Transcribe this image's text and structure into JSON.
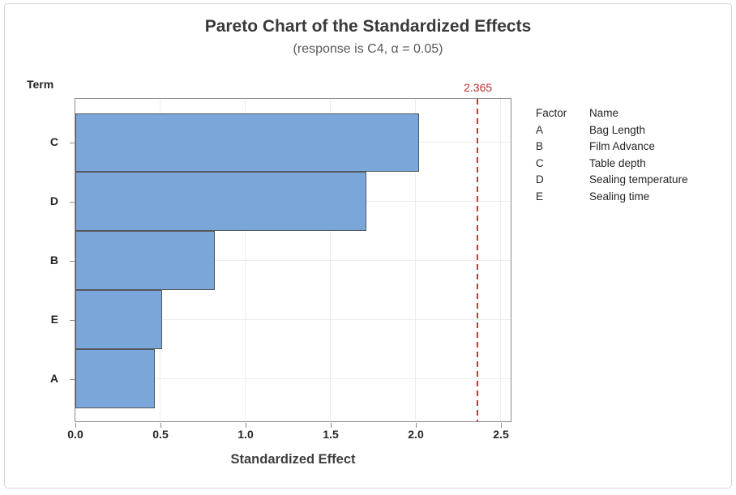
{
  "chart_data": {
    "type": "bar",
    "orientation": "horizontal",
    "title": "Pareto Chart of the Standardized Effects",
    "subtitle": "(response is C4, α = 0.05)",
    "xlabel": "Standardized Effect",
    "ylabel": "Term",
    "categories": [
      "C",
      "D",
      "B",
      "E",
      "A"
    ],
    "values": [
      2.02,
      1.71,
      0.82,
      0.51,
      0.47
    ],
    "xlim": [
      0,
      2.5
    ],
    "x_ticks": [
      "0.0",
      "0.5",
      "1.0",
      "1.5",
      "2.0",
      "2.5"
    ],
    "grid": "light gray vertical and horizontal gridlines",
    "reference_line": {
      "value": 2.365,
      "label": "2.365"
    },
    "legend": {
      "position": "right",
      "header": {
        "factor": "Factor",
        "name": "Name"
      },
      "rows": [
        {
          "factor": "A",
          "name": "Bag Length"
        },
        {
          "factor": "B",
          "name": "Film Advance"
        },
        {
          "factor": "C",
          "name": "Table depth"
        },
        {
          "factor": "D",
          "name": "Sealing temperature"
        },
        {
          "factor": "E",
          "name": "Sealing time"
        }
      ]
    },
    "colors": {
      "bar_fill": "#7ba6d9",
      "bar_border": "#54575c",
      "reference_line": "#d62e35",
      "reference_label": "#c22a30",
      "gridline": "#ececec",
      "frame": "#8a8a8a",
      "title_text": "#3a3a3a",
      "subtitle_text": "#595959",
      "axis_text": "#262626"
    }
  }
}
